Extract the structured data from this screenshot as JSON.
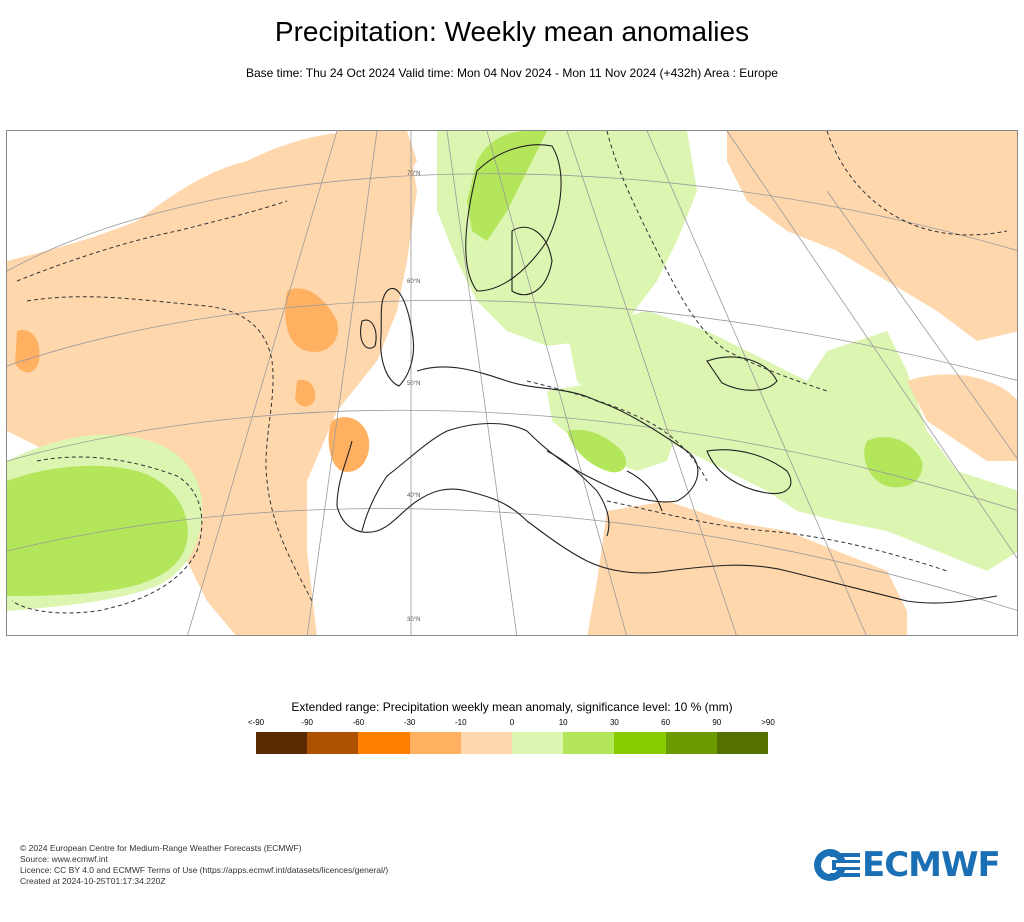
{
  "header": {
    "title": "Precipitation: Weekly mean anomalies",
    "subtitle": "Base time: Thu 24 Oct 2024 Valid time: Mon 04 Nov 2024 - Mon 11 Nov 2024 (+432h) Area : Europe"
  },
  "map": {
    "lat_labels": [
      "70°N",
      "60°N",
      "50°N",
      "40°N",
      "30°N"
    ]
  },
  "legend": {
    "title": "Extended range: Precipitation weekly mean anomaly, significance level: 10 % (mm)",
    "tick_labels": [
      "<-90",
      "-90",
      "-60",
      "-30",
      "-10",
      "0",
      "10",
      "30",
      "60",
      "90",
      ">90"
    ],
    "colors": [
      "#5a2a00",
      "#ad5200",
      "#ff8000",
      "#ffb061",
      "#ffd7ad",
      "#dcf5b1",
      "#b4e65c",
      "#88cc00",
      "#6a9a00",
      "#547000"
    ]
  },
  "footer": {
    "line1": "© 2024 European Centre for Medium-Range Weather Forecasts (ECMWF)",
    "line2": "Source: www.ecmwf.int",
    "line3": "Licence: CC BY 4.0 and ECMWF Terms of Use (https://apps.ecmwf.int/datasets/licences/general/)",
    "line4": "Created at 2024-10-25T01:17:34.220Z"
  },
  "logo": {
    "text": "ECMWF",
    "color": "#1a6fb5"
  }
}
